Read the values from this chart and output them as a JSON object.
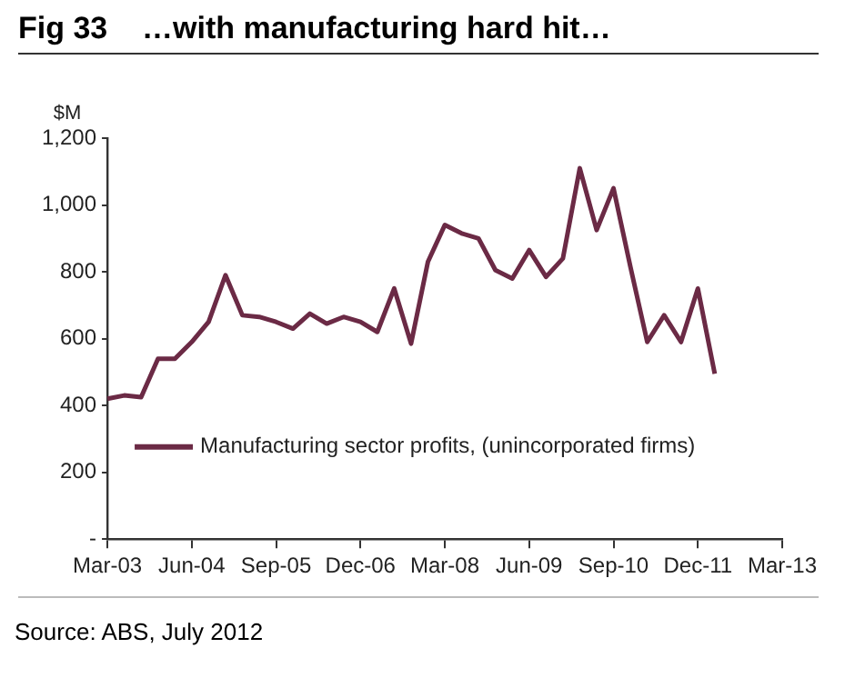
{
  "chart_data": {
    "type": "line",
    "title": "Fig 33    …with manufacturing hard hit…",
    "ylabel": "$M",
    "categories": [
      "Mar-03",
      null,
      null,
      null,
      null,
      "Jun-04",
      null,
      null,
      null,
      null,
      "Sep-05",
      null,
      null,
      null,
      null,
      "Dec-06",
      null,
      null,
      null,
      null,
      "Mar-08",
      null,
      null,
      null,
      null,
      "Jun-09",
      null,
      null,
      null,
      null,
      "Sep-10",
      null,
      null,
      null,
      null,
      "Dec-11",
      null,
      null,
      null,
      null,
      "Mar-13"
    ],
    "series": [
      {
        "name": "Manufacturing sector profits, (unincorporated firms)",
        "color": "#6b2a45",
        "values": [
          420,
          430,
          425,
          540,
          540,
          590,
          650,
          790,
          670,
          665,
          650,
          630,
          675,
          645,
          665,
          650,
          620,
          750,
          585,
          830,
          940,
          915,
          900,
          805,
          780,
          865,
          785,
          840,
          1110,
          925,
          1050,
          815,
          590,
          670,
          590,
          750,
          495,
          null,
          null,
          null,
          null
        ]
      }
    ],
    "ylim": [
      0,
      1200
    ],
    "yticks": [
      {
        "value": 0,
        "label": "-"
      },
      200,
      400,
      600,
      800,
      {
        "value": 1000,
        "label": "1,000"
      },
      {
        "value": 1200,
        "label": "1,200"
      }
    ],
    "grid": false,
    "legend": "bottom left",
    "marker": "none",
    "line_style": "solid",
    "annotations": [
      "Source: ABS, July 2012"
    ]
  }
}
